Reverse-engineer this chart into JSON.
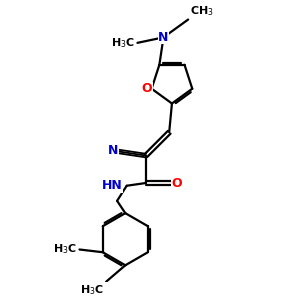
{
  "bg_color": "#ffffff",
  "atom_color_N": "#0000cc",
  "atom_color_O": "#ff0000",
  "bond_color": "#000000",
  "bond_lw": 1.6,
  "font_size_atom": 9,
  "font_size_methyl": 8,
  "xlim": [
    0,
    10
  ],
  "ylim": [
    0,
    10
  ]
}
